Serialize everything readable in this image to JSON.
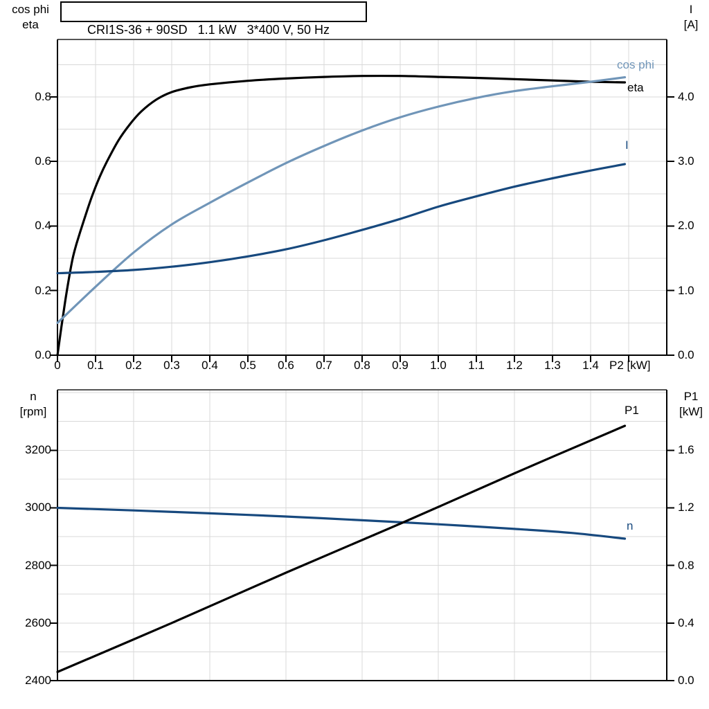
{
  "panel": {
    "title": "CRI1S-36 + 90SD   1.1 kW   3*400 V, 50 Hz",
    "colors": {
      "black": "#000000",
      "dark_blue": "#17497E",
      "light_blue": "#7095B8",
      "grid": "#D8D8D8",
      "frame": "#555555"
    }
  },
  "chart_data": [
    {
      "type": "line",
      "name": "motor-performance",
      "title": "CRI1S-36 + 90SD   1.1 kW   3*400 V, 50 Hz",
      "xlabel": "P2 [kW]",
      "x_range": [
        0,
        1.6
      ],
      "x_tick_labels": [
        "0",
        "0.1",
        "0.2",
        "0.3",
        "0.4",
        "0.5",
        "0.6",
        "0.7",
        "0.8",
        "0.9",
        "1.0",
        "1.1",
        "1.2",
        "1.3",
        "1.4"
      ],
      "grid": {
        "x_step": 0.1,
        "y_left_step": 0.1
      },
      "y_left": {
        "title_lines": [
          "cos phi",
          "eta"
        ],
        "range": [
          0,
          0.978
        ],
        "tick_values": [
          0,
          0.2,
          0.4,
          0.6,
          0.8
        ],
        "tick_labels": [
          "0.0",
          "0.2",
          "0.4",
          "0.6",
          "0.8"
        ]
      },
      "y_right": {
        "title_lines": [
          "I",
          "[A]"
        ],
        "range": [
          0,
          4.89
        ],
        "tick_values": [
          0,
          1,
          2,
          3,
          4
        ],
        "tick_labels": [
          "0.0",
          "1.0",
          "2.0",
          "3.0",
          "4.0"
        ]
      },
      "series": [
        {
          "name": "eta",
          "axis": "left",
          "color": "#000000",
          "points": [
            [
              0,
              0
            ],
            [
              0.01,
              0.085
            ],
            [
              0.02,
              0.165
            ],
            [
              0.03,
              0.237
            ],
            [
              0.04,
              0.3
            ],
            [
              0.05,
              0.345
            ],
            [
              0.07,
              0.42
            ],
            [
              0.09,
              0.49
            ],
            [
              0.11,
              0.55
            ],
            [
              0.13,
              0.6
            ],
            [
              0.16,
              0.665
            ],
            [
              0.19,
              0.715
            ],
            [
              0.22,
              0.755
            ],
            [
              0.26,
              0.792
            ],
            [
              0.3,
              0.815
            ],
            [
              0.35,
              0.83
            ],
            [
              0.4,
              0.839
            ],
            [
              0.5,
              0.85
            ],
            [
              0.6,
              0.857
            ],
            [
              0.7,
              0.862
            ],
            [
              0.8,
              0.865
            ],
            [
              0.9,
              0.865
            ],
            [
              1.0,
              0.862
            ],
            [
              1.1,
              0.859
            ],
            [
              1.2,
              0.855
            ],
            [
              1.3,
              0.851
            ],
            [
              1.4,
              0.847
            ],
            [
              1.49,
              0.845
            ]
          ]
        },
        {
          "name": "cos phi",
          "axis": "left",
          "color": "#7095B8",
          "points": [
            [
              0,
              0.1
            ],
            [
              0.1,
              0.212
            ],
            [
              0.2,
              0.318
            ],
            [
              0.3,
              0.405
            ],
            [
              0.4,
              0.472
            ],
            [
              0.5,
              0.535
            ],
            [
              0.6,
              0.595
            ],
            [
              0.7,
              0.648
            ],
            [
              0.8,
              0.696
            ],
            [
              0.9,
              0.737
            ],
            [
              1.0,
              0.77
            ],
            [
              1.1,
              0.797
            ],
            [
              1.2,
              0.818
            ],
            [
              1.3,
              0.833
            ],
            [
              1.4,
              0.847
            ],
            [
              1.49,
              0.861
            ]
          ]
        },
        {
          "name": "I",
          "axis": "right",
          "color": "#17497E",
          "points": [
            [
              0,
              1.27
            ],
            [
              0.1,
              1.29
            ],
            [
              0.2,
              1.32
            ],
            [
              0.3,
              1.37
            ],
            [
              0.4,
              1.44
            ],
            [
              0.5,
              1.53
            ],
            [
              0.6,
              1.64
            ],
            [
              0.7,
              1.78
            ],
            [
              0.8,
              1.94
            ],
            [
              0.9,
              2.11
            ],
            [
              1.0,
              2.3
            ],
            [
              1.1,
              2.46
            ],
            [
              1.2,
              2.61
            ],
            [
              1.3,
              2.74
            ],
            [
              1.4,
              2.86
            ],
            [
              1.49,
              2.96
            ]
          ]
        }
      ]
    },
    {
      "type": "line",
      "name": "speed-and-input-power",
      "xlabel": "",
      "x_range": [
        0,
        1.6
      ],
      "grid": {
        "x_step": 0.2,
        "y_left_step": 100
      },
      "y_left": {
        "title_lines": [
          "n",
          "[rpm]"
        ],
        "range": [
          2400,
          3410
        ],
        "tick_values": [
          2400,
          2600,
          2800,
          3000,
          3200
        ],
        "tick_labels": [
          "2400",
          "2600",
          "2800",
          "3000",
          "3200"
        ]
      },
      "y_right": {
        "title_lines": [
          "P1",
          "[kW]"
        ],
        "range": [
          0,
          2.02
        ],
        "tick_values": [
          0,
          0.4,
          0.8,
          1.2,
          1.6
        ],
        "tick_labels": [
          "0.0",
          "0.4",
          "0.8",
          "1.2",
          "1.6"
        ]
      },
      "series": [
        {
          "name": "n",
          "axis": "left",
          "color": "#17497E",
          "points": [
            [
              0,
              3000
            ],
            [
              0.2,
              2991
            ],
            [
              0.4,
              2981
            ],
            [
              0.6,
              2970
            ],
            [
              0.8,
              2957
            ],
            [
              1.0,
              2943
            ],
            [
              1.2,
              2927
            ],
            [
              1.35,
              2913
            ],
            [
              1.49,
              2893
            ]
          ]
        },
        {
          "name": "P1",
          "axis": "right",
          "color": "#000000",
          "points": [
            [
              0,
              0.06
            ],
            [
              0.3,
              0.4
            ],
            [
              0.6,
              0.75
            ],
            [
              0.9,
              1.09
            ],
            [
              1.2,
              1.44
            ],
            [
              1.49,
              1.77
            ]
          ]
        }
      ]
    }
  ]
}
